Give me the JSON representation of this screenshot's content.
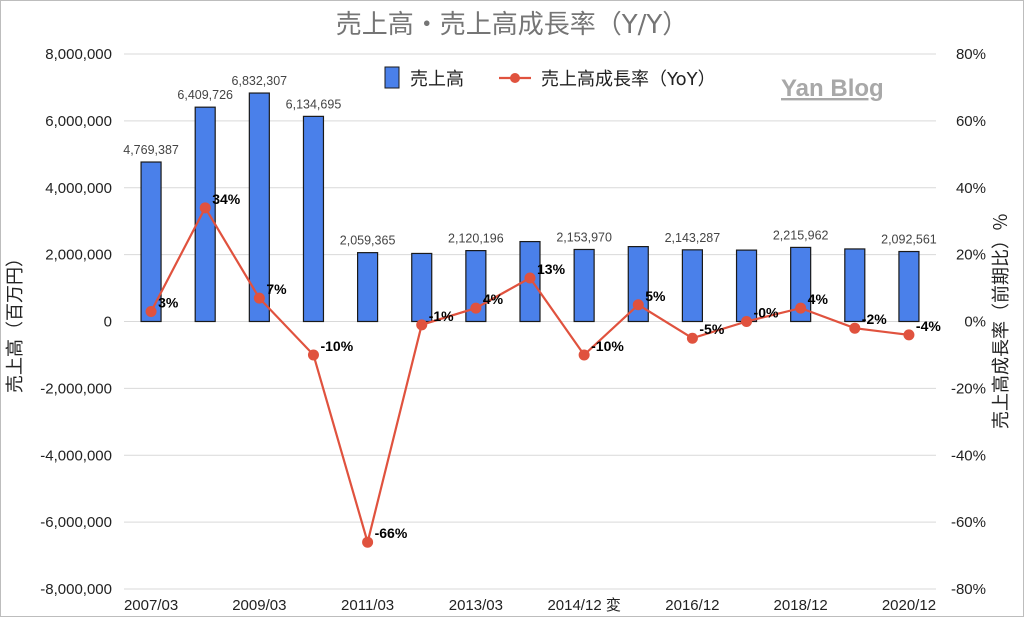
{
  "chart_data": {
    "type": "bar+line",
    "title": "売上高・売上高成長率（Y/Y）",
    "watermark": "Yan Blog",
    "y_left": {
      "label": "売上高（百万円）",
      "lim": [
        -8000000,
        8000000
      ],
      "ticks": [
        "-8,000,000",
        "-6,000,000",
        "-4,000,000",
        "-2,000,000",
        "0",
        "2,000,000",
        "4,000,000",
        "6,000,000",
        "8,000,000"
      ]
    },
    "y_right": {
      "label": "売上高成長率（前期比）％",
      "lim": [
        -80,
        80
      ],
      "ticks": [
        "-80%",
        "-60%",
        "-40%",
        "-20%",
        "0%",
        "20%",
        "40%",
        "60%",
        "80%"
      ]
    },
    "x_tick_labels": [
      "2007/03",
      "2009/03",
      "2011/03",
      "2013/03",
      "2014/12 変",
      "2016/12",
      "2018/12",
      "2020/12"
    ],
    "legend": {
      "position": "top-center",
      "bar_label": "売上高",
      "line_label": "売上高成長率（YoY）"
    },
    "bar_series": {
      "name": "売上高",
      "color": "#4a80ea",
      "values": [
        4769387,
        6409726,
        6832307,
        6134695,
        2059365,
        2035000,
        2120196,
        2390000,
        2153970,
        2240000,
        2143287,
        2135000,
        2215962,
        2170000,
        2092561
      ],
      "data_labels": [
        "4,769,387",
        "",
        "6,832,307",
        "6,134,695",
        "2,059,365",
        "",
        "2,120,196",
        "",
        "2,153,970",
        "",
        "2,143,287",
        "",
        "2,215,962",
        "",
        "2,092,561"
      ],
      "data_labels_left": [
        "",
        "6,409,726",
        "",
        "",
        "",
        "",
        "",
        "",
        "",
        "",
        "",
        "",
        "",
        "",
        ""
      ]
    },
    "line_series": {
      "name": "売上高成長率（YoY）",
      "color": "#e0523e",
      "values": [
        3,
        34,
        7,
        -10,
        -66,
        -1,
        4,
        13,
        -10,
        5,
        -5,
        0,
        4,
        -2,
        -4
      ],
      "data_labels": [
        "3%",
        "34%",
        "7%",
        "-10%",
        "-66%",
        "-1%",
        "4%",
        "13%",
        "-10%",
        "5%",
        "-5%",
        "-0%",
        "4%",
        "-2%",
        "-4%"
      ]
    }
  }
}
